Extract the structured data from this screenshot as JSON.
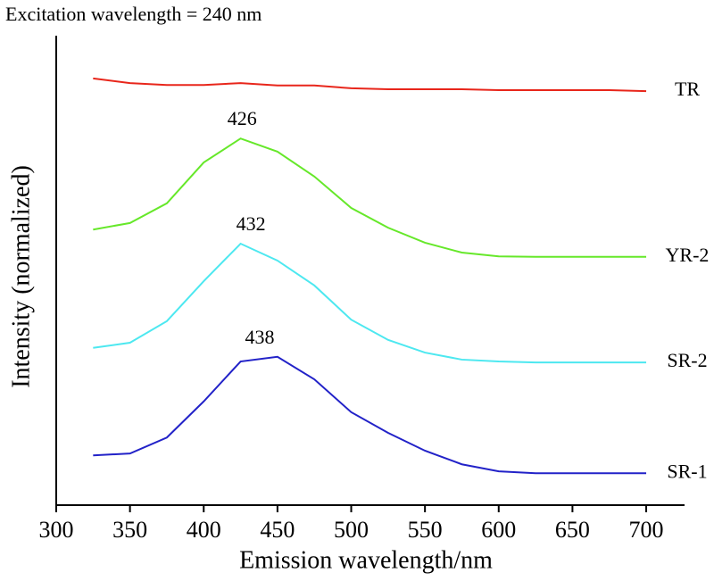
{
  "chart_data": {
    "type": "line",
    "title": "Excitation wavelength = 240 nm",
    "x_label": "Emission wavelength/nm",
    "y_label": "Intensity (normalized)",
    "x": [
      325,
      350,
      375,
      400,
      425,
      450,
      475,
      500,
      525,
      550,
      575,
      600,
      625,
      650,
      675,
      700
    ],
    "series": [
      {
        "name": "TR",
        "color": "#e8261b",
        "values": [
          90.9,
          89.9,
          89.5,
          89.5,
          89.9,
          89.4,
          89.4,
          88.8,
          88.6,
          88.6,
          88.6,
          88.4,
          88.4,
          88.4,
          88.4,
          88.2
        ]
      },
      {
        "name": "YR-2",
        "color": "#66e82a",
        "peak": 426,
        "values": [
          58.7,
          60.1,
          64.3,
          73.0,
          78.1,
          75.3,
          70.0,
          63.3,
          59.1,
          55.9,
          53.8,
          53.0,
          52.9,
          52.9,
          52.9,
          52.9
        ]
      },
      {
        "name": "SR-2",
        "color": "#4de8f0",
        "peak": 432,
        "values": [
          33.5,
          34.6,
          39.2,
          47.7,
          55.7,
          52.1,
          46.8,
          39.5,
          35.2,
          32.5,
          31.0,
          30.6,
          30.4,
          30.4,
          30.4,
          30.4
        ]
      },
      {
        "name": "SR-1",
        "color": "#2222c8",
        "peak": 438,
        "values": [
          10.6,
          11.0,
          14.4,
          22.1,
          30.6,
          31.6,
          26.8,
          19.8,
          15.4,
          11.6,
          8.7,
          7.2,
          6.8,
          6.8,
          6.8,
          6.8
        ]
      }
    ],
    "xlim": [
      300,
      726
    ],
    "xticks": [
      300,
      350,
      400,
      450,
      500,
      550,
      600,
      650,
      700
    ],
    "ylim": [
      0,
      100
    ]
  }
}
